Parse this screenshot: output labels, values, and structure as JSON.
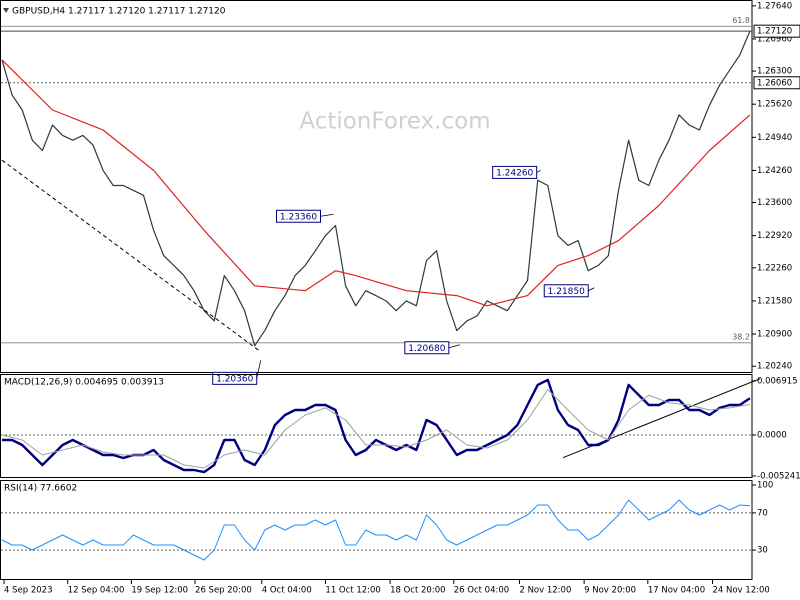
{
  "chart_data": [
    {
      "type": "line",
      "title": "GBPUSD,H4  1.27117 1.27120 1.27117 1.27120",
      "watermark": "ActionForex.com",
      "xlim": [
        0,
        75
      ],
      "ylim": [
        1.201,
        1.2776
      ],
      "yticks": [
        {
          "value": 1.2764,
          "label": "1.27640"
        },
        {
          "value": 1.2696,
          "label": "1.26960"
        },
        {
          "value": 1.263,
          "label": "1.26300"
        },
        {
          "value": 1.2562,
          "label": "1.25620"
        },
        {
          "value": 1.2494,
          "label": "1.24940"
        },
        {
          "value": 1.2426,
          "label": "1.24260"
        },
        {
          "value": 1.236,
          "label": "1.23600"
        },
        {
          "value": 1.2292,
          "label": "1.22920"
        },
        {
          "value": 1.2226,
          "label": "1.22260"
        },
        {
          "value": 1.2158,
          "label": "1.21580"
        },
        {
          "value": 1.209,
          "label": "1.20900"
        },
        {
          "value": 1.2024,
          "label": "1.20240"
        }
      ],
      "series": [
        {
          "color": "#2b3a42",
          "width": 1.2,
          "values": [
            1.2653,
            1.2581,
            1.255,
            1.2488,
            1.2467,
            1.2519,
            1.2498,
            1.2488,
            1.2498,
            1.2478,
            1.2426,
            1.2395,
            1.2395,
            1.2385,
            1.2375,
            1.2303,
            1.2251,
            1.2231,
            1.221,
            1.2179,
            1.2138,
            1.2117,
            1.221,
            1.2179,
            1.2138,
            1.2066,
            1.2097,
            1.2138,
            1.2169,
            1.221,
            1.2231,
            1.2261,
            1.2292,
            1.2313,
            1.2189,
            1.2148,
            1.2179,
            1.2169,
            1.2158,
            1.2138,
            1.2158,
            1.2148,
            1.2241,
            1.2261,
            1.2158,
            1.2097,
            1.2117,
            1.2127,
            1.2158,
            1.2148,
            1.2138,
            1.2169,
            1.22,
            1.2406,
            1.2395,
            1.2292,
            1.2272,
            1.2282,
            1.222,
            1.2231,
            1.2251,
            1.2385,
            1.2488,
            1.2406,
            1.2395,
            1.2447,
            1.2488,
            1.254,
            1.2519,
            1.2509,
            1.256,
            1.2601,
            1.2632,
            1.2663,
            1.2712
          ]
        },
        {
          "color": "#e02020",
          "width": 1.2,
          "x": [
            0,
            5,
            10,
            15,
            20,
            25,
            30,
            33,
            35,
            40,
            45,
            48,
            52,
            55,
            58,
            61,
            65,
            70,
            74
          ],
          "values": [
            1.2653,
            1.255,
            1.2509,
            1.2426,
            1.2303,
            1.2189,
            1.2179,
            1.222,
            1.221,
            1.2179,
            1.2169,
            1.2148,
            1.2169,
            1.2231,
            1.2251,
            1.2282,
            1.2354,
            1.2467,
            1.254
          ]
        }
      ],
      "trendlines": [
        {
          "x": [
            0,
            25.5
          ],
          "values": [
            1.2447,
            1.2055
          ],
          "style": "dashed"
        }
      ],
      "levels": [
        {
          "value": 1.2712,
          "label": "1.27120",
          "style": "solid"
        },
        {
          "value": 1.2606,
          "label": "1.26060",
          "style": "dotted"
        }
      ],
      "fib_levels": [
        {
          "value": 1.2722,
          "label": "61.8"
        },
        {
          "value": 1.2072,
          "label": "38.2"
        }
      ],
      "annotations": [
        {
          "x": 25.6,
          "value": 1.2036,
          "label": "1.20360"
        },
        {
          "x": 32.8,
          "value": 1.2336,
          "label": "1.23360"
        },
        {
          "x": 45.3,
          "value": 1.2068,
          "label": "1.20680"
        },
        {
          "x": 53.3,
          "value": 1.2426,
          "label": "1.24260"
        },
        {
          "x": 58.6,
          "value": 1.2185,
          "label": "1.21850"
        }
      ]
    },
    {
      "type": "line",
      "title": "MACD(12,26,9) 0.004695 0.003913",
      "xlim": [
        0,
        75
      ],
      "ylim": [
        -0.0055,
        0.0078
      ],
      "yticks": [
        0.006915,
        {
          "value": 0,
          "label": "0.0000"
        },
        -0.005241
      ],
      "series": [
        {
          "color": "#000080",
          "width": 2.4,
          "values": [
            -0.00064,
            -0.00064,
            -0.00128,
            -0.00256,
            -0.00384,
            -0.00256,
            -0.00128,
            -0.00064,
            -0.00128,
            -0.00192,
            -0.00256,
            -0.00256,
            -0.00294,
            -0.00256,
            -0.00256,
            -0.00192,
            -0.0032,
            -0.00384,
            -0.00448,
            -0.00448,
            -0.00474,
            -0.00384,
            -0.00064,
            -0.00064,
            -0.0032,
            -0.00384,
            -0.00192,
            0.00128,
            0.00256,
            0.0032,
            0.0032,
            0.00384,
            0.00384,
            0.0032,
            -0.00064,
            -0.00256,
            -0.00192,
            -0.00064,
            -0.00128,
            -0.00192,
            -0.00128,
            -0.00192,
            0.00192,
            0.00128,
            -0.00064,
            -0.00256,
            -0.00192,
            -0.00192,
            -0.00128,
            -0.00064,
            0,
            0.00128,
            0.00384,
            0.0064,
            0.00704,
            0.0032,
            0.00128,
            0.00064,
            -0.00128,
            -0.00128,
            -0.00064,
            0.00192,
            0.0064,
            0.00512,
            0.00384,
            0.00384,
            0.00448,
            0.00448,
            0.0032,
            0.0032,
            0.00256,
            0.00346,
            0.00384,
            0.00384,
            0.004695
          ]
        },
        {
          "color": "#a0a0a0",
          "width": 1,
          "x": [
            0,
            2,
            4,
            6,
            8,
            10,
            12,
            14,
            16,
            18,
            20,
            22,
            24,
            26,
            28,
            30,
            32,
            34,
            36,
            38,
            40,
            42,
            44,
            46,
            48,
            50,
            52,
            54,
            56,
            58,
            60,
            62,
            64,
            66,
            68,
            70,
            72,
            74
          ],
          "values": [
            0,
            -0.00064,
            -0.00256,
            -0.00192,
            -0.00128,
            -0.00218,
            -0.00256,
            -0.00256,
            -0.00256,
            -0.00384,
            -0.00422,
            -0.00256,
            -0.00192,
            -0.00256,
            0.00064,
            0.00256,
            0.00346,
            0.00192,
            -0.00128,
            -0.00128,
            -0.00154,
            -0.00064,
            0.00064,
            -0.00128,
            -0.00166,
            -0.00064,
            0.00192,
            0.0058,
            0.0032,
            0.00064,
            -0.00064,
            0.0032,
            0.0051,
            0.0041,
            0.00384,
            0.0032,
            0.00346,
            0.003913
          ]
        }
      ],
      "trendlines": [
        {
          "x": [
            55.5,
            75
          ],
          "values": [
            -0.0029,
            0.0072
          ],
          "style": "solid"
        }
      ],
      "levels": [
        {
          "value": 0,
          "style": "dotted"
        }
      ]
    },
    {
      "type": "line",
      "title": "RSI(14) 77.6602",
      "xlim": [
        0,
        75
      ],
      "ylim": [
        0,
        100
      ],
      "yticks": [
        100,
        70,
        30
      ],
      "xticks": [
        {
          "value": 0.2,
          "label": "4 Sep 2023"
        },
        {
          "value": 6.5,
          "label": "12 Sep 04:00"
        },
        {
          "value": 12.8,
          "label": "19 Sep 12:00"
        },
        {
          "value": 19.1,
          "label": "26 Sep 20:00"
        },
        {
          "value": 25.7,
          "label": "4 Oct 04:00"
        },
        {
          "value": 32,
          "label": "11 Oct 12:00"
        },
        {
          "value": 38.4,
          "label": "18 Oct 20:00"
        },
        {
          "value": 44.7,
          "label": "26 Oct 04:00"
        },
        {
          "value": 51.2,
          "label": "2 Nov 12:00"
        },
        {
          "value": 57.6,
          "label": "9 Nov 20:00"
        },
        {
          "value": 63.9,
          "label": "17 Nov 04:00"
        },
        {
          "value": 70.3,
          "label": "24 Nov 12:00"
        }
      ],
      "series": [
        {
          "color": "#1e90ff",
          "width": 1,
          "values": [
            40.9,
            35.5,
            35.5,
            30.1,
            35.5,
            40.9,
            46.2,
            40.9,
            35.5,
            40.9,
            35.5,
            35.5,
            35.5,
            46.2,
            40.9,
            35.5,
            35.5,
            35.5,
            30.1,
            24.7,
            19.4,
            30.1,
            57.0,
            57.0,
            40.9,
            30.1,
            51.6,
            57.0,
            51.6,
            57.0,
            57.0,
            62.4,
            57.0,
            62.4,
            35.5,
            35.5,
            51.6,
            46.2,
            46.2,
            40.9,
            46.2,
            40.9,
            67.7,
            57.0,
            40.9,
            35.5,
            40.9,
            46.2,
            51.6,
            57.0,
            57.0,
            62.4,
            67.7,
            78.5,
            78.5,
            62.4,
            51.6,
            51.6,
            40.9,
            46.2,
            57.0,
            67.7,
            83.9,
            73.1,
            62.4,
            67.7,
            73.1,
            83.9,
            73.1,
            67.7,
            73.1,
            78.5,
            73.1,
            78.5,
            77.6602
          ]
        }
      ],
      "levels": [
        {
          "value": 70,
          "style": "dotted"
        },
        {
          "value": 30,
          "style": "dotted"
        }
      ]
    }
  ]
}
